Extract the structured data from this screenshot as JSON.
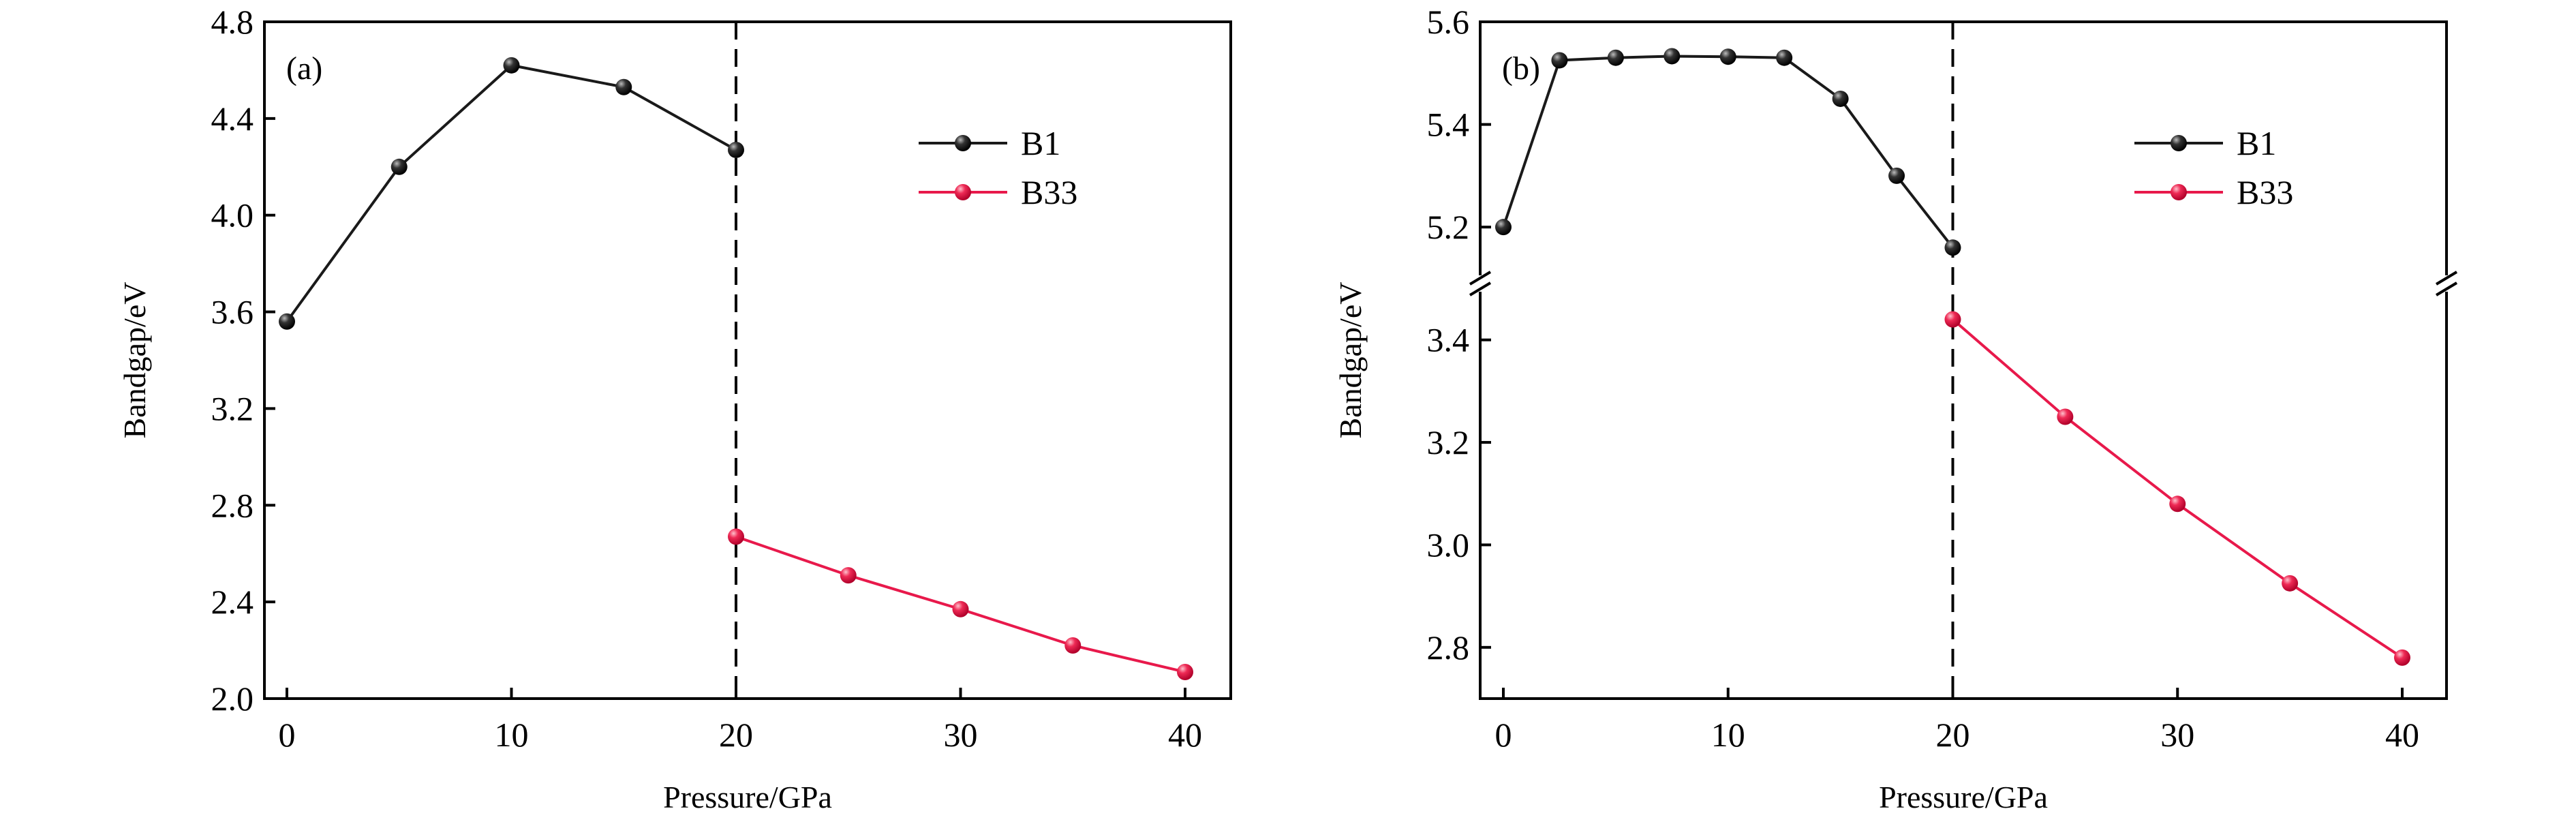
{
  "chart_data": [
    {
      "type": "line",
      "panel_label": "(a)",
      "xlabel": "Pressure/GPa",
      "ylabel": "Bandgap/eV",
      "xlim": [
        -1,
        42
      ],
      "ylim": [
        2.0,
        4.8
      ],
      "xticks": [
        0,
        10,
        20,
        30,
        40
      ],
      "yticks": [
        2.0,
        2.4,
        2.8,
        3.2,
        3.6,
        4.0,
        4.4,
        4.8
      ],
      "grid": false,
      "legend_position": "top-right",
      "vline_x": 20,
      "series": [
        {
          "name": "B1",
          "color": "#1a1a1a",
          "x": [
            0,
            5,
            10,
            15,
            20
          ],
          "y": [
            3.56,
            4.2,
            4.62,
            4.53,
            4.27
          ]
        },
        {
          "name": "B33",
          "color": "#e8194b",
          "x": [
            20,
            25,
            30,
            35,
            40
          ],
          "y": [
            2.67,
            2.51,
            2.37,
            2.22,
            2.11
          ]
        }
      ]
    },
    {
      "type": "line",
      "panel_label": "(b)",
      "xlabel": "Pressure/GPa",
      "ylabel": "Bandgap/eV",
      "xlim": [
        -1,
        42
      ],
      "broken_y_axis": true,
      "ylim_upper": [
        5.09,
        5.6
      ],
      "ylim_lower": [
        2.7,
        3.51
      ],
      "xticks": [
        0,
        10,
        20,
        30,
        40
      ],
      "yticks_upper": [
        5.2,
        5.4,
        5.6
      ],
      "yticks_lower": [
        2.8,
        3.0,
        3.2,
        3.4
      ],
      "grid": false,
      "legend_position": "top-right",
      "vline_x": 20,
      "series": [
        {
          "name": "B1",
          "color": "#1a1a1a",
          "x": [
            0,
            2.5,
            5,
            7.5,
            10,
            12.5,
            15,
            17.5,
            20
          ],
          "y": [
            5.2,
            5.525,
            5.53,
            5.533,
            5.532,
            5.53,
            5.45,
            5.3,
            5.16
          ]
        },
        {
          "name": "B33",
          "color": "#e8194b",
          "x": [
            20,
            25,
            30,
            35,
            40
          ],
          "y": [
            3.44,
            3.25,
            3.08,
            2.925,
            2.78
          ]
        }
      ]
    }
  ]
}
